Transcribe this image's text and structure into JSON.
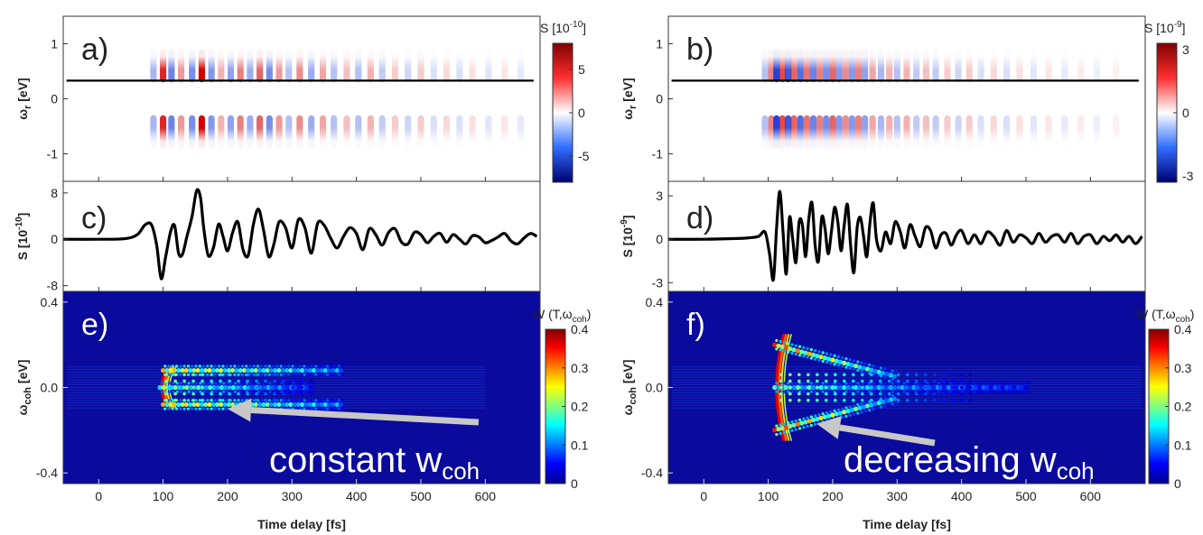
{
  "chart_data": [
    {
      "id": "a",
      "type": "heatmap",
      "panel_label": "a)",
      "ylabel": "ω",
      "ylabel_sub": "r",
      "ylabel_unit": "[eV]",
      "xlim": [
        -55,
        685
      ],
      "ylim": [
        -1.5,
        1.5
      ],
      "yticks": [
        {
          "v": 1,
          "t": "1"
        },
        {
          "v": 0,
          "t": "0"
        },
        {
          "v": -1,
          "t": "-1"
        }
      ],
      "xticks": [
        0,
        100,
        200,
        300,
        400,
        500,
        600
      ],
      "colorbar": {
        "title": "S [10",
        "title_exp": "-10",
        "title_end": "]",
        "ticks": [
          {
            "v": 5,
            "t": "5"
          },
          {
            "v": 0,
            "t": "0"
          },
          {
            "v": -5,
            "t": "-5"
          }
        ],
        "range": [
          -8,
          8
        ],
        "colormap": "red-white-blue"
      },
      "cut_line_y": 0.33,
      "stripes": [
        {
          "t": 85,
          "a": -0.35
        },
        {
          "t": 100,
          "a": 0.85
        },
        {
          "t": 113,
          "a": -0.6
        },
        {
          "t": 128,
          "a": 0.4
        },
        {
          "t": 145,
          "a": -0.55
        },
        {
          "t": 160,
          "a": 1.0
        },
        {
          "t": 175,
          "a": -0.5
        },
        {
          "t": 190,
          "a": 0.3
        },
        {
          "t": 205,
          "a": -0.45
        },
        {
          "t": 220,
          "a": 0.5
        },
        {
          "t": 235,
          "a": -0.4
        },
        {
          "t": 250,
          "a": 0.6
        },
        {
          "t": 265,
          "a": -0.55
        },
        {
          "t": 280,
          "a": 0.4
        },
        {
          "t": 295,
          "a": -0.3
        },
        {
          "t": 312,
          "a": 0.45
        },
        {
          "t": 330,
          "a": -0.4
        },
        {
          "t": 348,
          "a": 0.35
        },
        {
          "t": 365,
          "a": -0.3
        },
        {
          "t": 385,
          "a": 0.25
        },
        {
          "t": 403,
          "a": -0.3
        },
        {
          "t": 422,
          "a": 0.3
        },
        {
          "t": 440,
          "a": -0.25
        },
        {
          "t": 460,
          "a": 0.2
        },
        {
          "t": 480,
          "a": -0.2
        },
        {
          "t": 500,
          "a": 0.2
        },
        {
          "t": 520,
          "a": -0.15
        },
        {
          "t": 540,
          "a": 0.15
        },
        {
          "t": 560,
          "a": -0.15
        },
        {
          "t": 580,
          "a": 0.12
        },
        {
          "t": 605,
          "a": -0.12
        },
        {
          "t": 630,
          "a": 0.1
        },
        {
          "t": 655,
          "a": -0.1
        }
      ]
    },
    {
      "id": "b",
      "type": "heatmap",
      "panel_label": "b)",
      "ylabel": "ω",
      "ylabel_sub": "r",
      "ylabel_unit": "[eV]",
      "xlim": [
        -55,
        685
      ],
      "ylim": [
        -1.5,
        1.5
      ],
      "yticks": [
        {
          "v": 1,
          "t": "1"
        },
        {
          "v": 0,
          "t": "0"
        },
        {
          "v": -1,
          "t": "-1"
        }
      ],
      "xticks": [
        0,
        100,
        200,
        300,
        400,
        500,
        600
      ],
      "colorbar": {
        "title": "S [10",
        "title_exp": "-9",
        "title_end": "]",
        "ticks": [
          {
            "v": 3,
            "t": "3"
          },
          {
            "v": 0,
            "t": "0"
          },
          {
            "v": -3,
            "t": "-3"
          }
        ],
        "range": [
          -3.3,
          3.3
        ],
        "colormap": "red-white-blue"
      },
      "cut_line_y": 0.33,
      "stripes": [
        {
          "t": 95,
          "a": -0.3
        },
        {
          "t": 105,
          "a": 0.5
        },
        {
          "t": 113,
          "a": -0.9
        },
        {
          "t": 122,
          "a": 0.7
        },
        {
          "t": 131,
          "a": -0.8
        },
        {
          "t": 140,
          "a": 0.6
        },
        {
          "t": 150,
          "a": -0.7
        },
        {
          "t": 160,
          "a": 0.55
        },
        {
          "t": 170,
          "a": -0.6
        },
        {
          "t": 180,
          "a": 0.5
        },
        {
          "t": 190,
          "a": -0.55
        },
        {
          "t": 200,
          "a": 0.6
        },
        {
          "t": 210,
          "a": -0.5
        },
        {
          "t": 220,
          "a": 0.45
        },
        {
          "t": 230,
          "a": -0.5
        },
        {
          "t": 240,
          "a": 0.5
        },
        {
          "t": 250,
          "a": -0.45
        },
        {
          "t": 262,
          "a": 0.35
        },
        {
          "t": 275,
          "a": -0.35
        },
        {
          "t": 288,
          "a": 0.3
        },
        {
          "t": 300,
          "a": -0.3
        },
        {
          "t": 315,
          "a": 0.3
        },
        {
          "t": 330,
          "a": -0.25
        },
        {
          "t": 345,
          "a": 0.25
        },
        {
          "t": 360,
          "a": -0.25
        },
        {
          "t": 378,
          "a": 0.2
        },
        {
          "t": 395,
          "a": -0.2
        },
        {
          "t": 412,
          "a": 0.2
        },
        {
          "t": 430,
          "a": -0.15
        },
        {
          "t": 450,
          "a": 0.15
        },
        {
          "t": 470,
          "a": -0.15
        },
        {
          "t": 490,
          "a": 0.12
        },
        {
          "t": 512,
          "a": -0.12
        },
        {
          "t": 535,
          "a": 0.1
        },
        {
          "t": 560,
          "a": -0.1
        },
        {
          "t": 585,
          "a": 0.08
        },
        {
          "t": 610,
          "a": -0.08
        },
        {
          "t": 640,
          "a": 0.06
        }
      ]
    },
    {
      "id": "c",
      "type": "line",
      "panel_label": "c)",
      "ylabel": "S [10",
      "ylabel_exp": "-10",
      "ylabel_end": "]",
      "xlim": [
        -55,
        685
      ],
      "ylim": [
        -9,
        10
      ],
      "yticks": [
        {
          "v": 8,
          "t": "8"
        },
        {
          "v": 0,
          "t": "0"
        },
        {
          "v": -8,
          "t": "-8"
        }
      ],
      "xticks": [
        0,
        100,
        200,
        300,
        400,
        500,
        600
      ],
      "x": [
        -55,
        0,
        40,
        60,
        72,
        82,
        90,
        97,
        104,
        112,
        118,
        124,
        130,
        137,
        145,
        152,
        158,
        163,
        170,
        178,
        186,
        193,
        200,
        208,
        216,
        224,
        232,
        240,
        248,
        256,
        264,
        272,
        280,
        290,
        300,
        310,
        320,
        330,
        340,
        350,
        360,
        370,
        380,
        390,
        400,
        410,
        420,
        430,
        440,
        450,
        460,
        470,
        480,
        490,
        500,
        510,
        520,
        530,
        540,
        550,
        560,
        570,
        580,
        590,
        600,
        610,
        620,
        630,
        640,
        650,
        660,
        670,
        680
      ],
      "y": [
        0,
        0,
        0.1,
        0.8,
        2.5,
        2.5,
        -1.0,
        -6.8,
        -3.0,
        1.5,
        2.3,
        -2.4,
        -2.6,
        0.5,
        4.0,
        8.4,
        7.2,
        2.0,
        -2.8,
        -1.5,
        2.6,
        0.5,
        -2.0,
        1.2,
        3.0,
        -1.8,
        -2.8,
        2.5,
        5.2,
        1.5,
        -3.0,
        -0.8,
        3.0,
        2.0,
        -1.5,
        3.4,
        2.0,
        -2.4,
        2.8,
        2.4,
        0.2,
        -1.5,
        0.5,
        2.0,
        1.0,
        -1.8,
        1.8,
        0.8,
        -1.0,
        1.2,
        1.8,
        -0.5,
        -0.8,
        1.2,
        0.8,
        -0.6,
        0.5,
        1.0,
        -0.5,
        0.8,
        0.0,
        -0.8,
        0.6,
        0.4,
        -0.6,
        -0.2,
        0.4,
        1.0,
        -0.3,
        -0.8,
        0.2,
        1.0,
        0.5
      ]
    },
    {
      "id": "d",
      "type": "line",
      "panel_label": "d)",
      "ylabel": "S [10",
      "ylabel_exp": "-9",
      "ylabel_end": "]",
      "xlim": [
        -55,
        685
      ],
      "ylim": [
        -3.6,
        4.0
      ],
      "yticks": [
        {
          "v": 3,
          "t": "3"
        },
        {
          "v": 0,
          "t": "0"
        },
        {
          "v": -3,
          "t": "-3"
        }
      ],
      "xticks": [
        0,
        100,
        200,
        300,
        400,
        500,
        600
      ],
      "x": [
        -55,
        0,
        50,
        70,
        85,
        95,
        102,
        108,
        113,
        118,
        123,
        128,
        133,
        138,
        143,
        148,
        153,
        158,
        163,
        168,
        173,
        178,
        183,
        188,
        193,
        198,
        203,
        208,
        213,
        218,
        223,
        228,
        233,
        238,
        243,
        248,
        253,
        258,
        263,
        268,
        275,
        282,
        290,
        297,
        305,
        312,
        320,
        328,
        336,
        344,
        352,
        360,
        368,
        376,
        384,
        392,
        400,
        410,
        420,
        430,
        440,
        450,
        460,
        470,
        480,
        490,
        500,
        510,
        520,
        530,
        540,
        550,
        560,
        570,
        580,
        590,
        600,
        610,
        620,
        630,
        640,
        650,
        660,
        670,
        680
      ],
      "y": [
        0,
        0,
        0.05,
        0.1,
        0.2,
        0.5,
        -1.0,
        -2.8,
        0.8,
        3.3,
        0.5,
        -2.4,
        1.5,
        0.0,
        -1.6,
        1.2,
        1.0,
        -1.2,
        1.4,
        2.5,
        -0.5,
        -1.5,
        1.5,
        0.8,
        -1.0,
        0.5,
        2.2,
        1.2,
        -0.8,
        1.0,
        2.4,
        -0.5,
        -2.3,
        0.8,
        1.5,
        0.2,
        -1.2,
        1.2,
        2.5,
        0.0,
        -0.8,
        0.5,
        -0.3,
        1.2,
        0.5,
        -0.6,
        1.0,
        0.2,
        -0.5,
        0.8,
        0.6,
        -0.6,
        0.3,
        0.4,
        -0.4,
        0.3,
        0.6,
        -0.3,
        0.3,
        -0.3,
        0.5,
        0.2,
        -0.4,
        0.6,
        -0.2,
        0.3,
        0.1,
        -0.3,
        0.4,
        -0.2,
        0.2,
        0.3,
        -0.2,
        0.4,
        -0.3,
        0.2,
        0.3,
        -0.3,
        0.2,
        -0.1,
        0.3,
        -0.2,
        0.2,
        -0.3,
        0.2
      ]
    },
    {
      "id": "e",
      "type": "heatmap",
      "panel_label": "e)",
      "ylabel": "ω",
      "ylabel_sub": "coh",
      "ylabel_unit": "[eV]",
      "xlabel": "Time delay [fs]",
      "xlim": [
        -55,
        685
      ],
      "ylim": [
        -0.45,
        0.45
      ],
      "yticks": [
        {
          "v": 0.4,
          "t": "0.4"
        },
        {
          "v": 0,
          "t": "0.0"
        },
        {
          "v": -0.4,
          "t": "-0.4"
        }
      ],
      "xticks": [
        0,
        100,
        200,
        300,
        400,
        500,
        600
      ],
      "colorbar": {
        "title": "W (T,ω",
        "title_sub": "coh",
        "title_end": ")",
        "ticks": [
          {
            "v": 0.4,
            "t": "0.4"
          },
          {
            "v": 0.3,
            "t": "0.3"
          },
          {
            "v": 0.2,
            "t": "0.2"
          },
          {
            "v": 0.1,
            "t": "0.1"
          },
          {
            "v": 0,
            "t": "0"
          }
        ],
        "range": [
          0,
          0.4
        ],
        "colormap": "jet"
      },
      "bands": [
        {
          "y": 0.08,
          "t0": 100,
          "t1": 380,
          "i": 0.75
        },
        {
          "y": -0.08,
          "t0": 100,
          "t1": 380,
          "i": 0.75
        },
        {
          "y": 0.0,
          "t0": 95,
          "t1": 330,
          "i": 0.55
        }
      ],
      "onset": {
        "t": 95,
        "y0": -0.1,
        "y1": 0.1
      },
      "annotation": {
        "text": "constant w",
        "sub": "coh",
        "arrow_to": [
          200,
          -0.1
        ]
      }
    },
    {
      "id": "f",
      "type": "heatmap",
      "panel_label": "f)",
      "ylabel": "ω",
      "ylabel_sub": "coh",
      "ylabel_unit": "[eV]",
      "xlabel": "Time delay [fs]",
      "xlim": [
        -55,
        685
      ],
      "ylim": [
        -0.45,
        0.45
      ],
      "yticks": [
        {
          "v": 0.4,
          "t": "0.4"
        },
        {
          "v": 0,
          "t": "0.0"
        },
        {
          "v": -0.4,
          "t": "-0.4"
        }
      ],
      "xticks": [
        0,
        100,
        200,
        300,
        400,
        500,
        600
      ],
      "colorbar": {
        "title": "W (T,ω",
        "title_sub": "coh",
        "title_end": ")",
        "ticks": [
          {
            "v": 0.4,
            "t": "0.4"
          },
          {
            "v": 0.3,
            "t": "0.3"
          },
          {
            "v": 0.2,
            "t": "0.2"
          },
          {
            "v": 0.1,
            "t": "0.1"
          },
          {
            "v": 0,
            "t": "0"
          }
        ],
        "range": [
          0,
          0.4
        ],
        "colormap": "jet"
      },
      "bands": [
        {
          "y0": 0.2,
          "y1": 0.05,
          "t0": 110,
          "t1": 300,
          "i": 0.85
        },
        {
          "y0": -0.2,
          "y1": -0.05,
          "t0": 110,
          "t1": 300,
          "i": 0.85
        },
        {
          "y": 0.0,
          "t0": 110,
          "t1": 500,
          "i": 0.45
        }
      ],
      "onset": {
        "t": 110,
        "y0": -0.25,
        "y1": 0.25
      },
      "annotation": {
        "text": "decreasing w",
        "sub": "coh",
        "arrow_to": [
          175,
          -0.17
        ]
      }
    }
  ]
}
